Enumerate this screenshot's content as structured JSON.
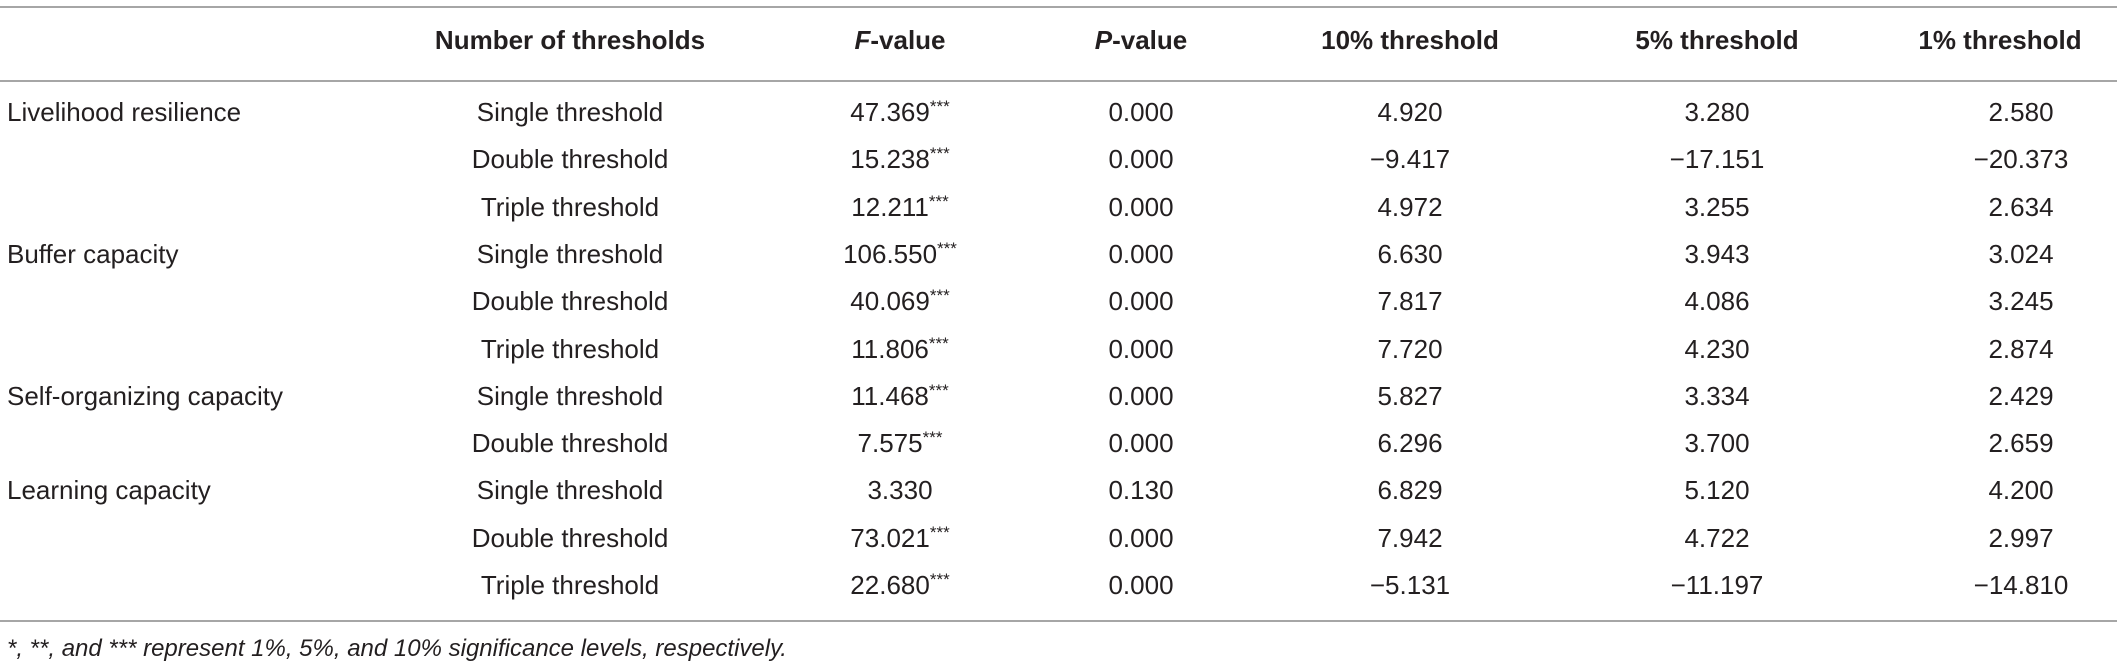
{
  "table": {
    "header": [
      {
        "text": "Number of thresholds"
      },
      {
        "italic": "F",
        "text": "-value"
      },
      {
        "italic": "P",
        "text": "-value"
      },
      {
        "text": "10% threshold"
      },
      {
        "text": "5% threshold"
      },
      {
        "text": "1% threshold"
      }
    ],
    "groups": [
      {
        "name": "Livelihood resilience",
        "rows": [
          [
            "Single threshold",
            "47.369***",
            "0.000",
            "4.920",
            "3.280",
            "2.580"
          ],
          [
            "Double threshold",
            "15.238***",
            "0.000",
            "−9.417",
            "−17.151",
            "−20.373"
          ],
          [
            "Triple threshold",
            "12.211***",
            "0.000",
            "4.972",
            "3.255",
            "2.634"
          ]
        ]
      },
      {
        "name": "Buffer capacity",
        "rows": [
          [
            "Single threshold",
            "106.550***",
            "0.000",
            "6.630",
            "3.943",
            "3.024"
          ],
          [
            "Double threshold",
            "40.069***",
            "0.000",
            "7.817",
            "4.086",
            "3.245"
          ],
          [
            "Triple threshold",
            "11.806***",
            "0.000",
            "7.720",
            "4.230",
            "2.874"
          ]
        ]
      },
      {
        "name": "Self-organizing capacity",
        "rows": [
          [
            "Single threshold",
            "11.468***",
            "0.000",
            "5.827",
            "3.334",
            "2.429"
          ],
          [
            "Double threshold",
            "7.575***",
            "0.000",
            "6.296",
            "3.700",
            "2.659"
          ]
        ]
      },
      {
        "name": "Learning capacity",
        "rows": [
          [
            "Single threshold",
            "3.330",
            "0.130",
            "6.829",
            "5.120",
            "4.200"
          ],
          [
            "Double threshold",
            "73.021***",
            "0.000",
            "7.942",
            "4.722",
            "2.997"
          ],
          [
            "Triple threshold",
            "22.680***",
            "0.000",
            "−5.131",
            "−11.197",
            "−14.810"
          ]
        ]
      }
    ],
    "footnote": "*, **, and *** represent 1%, 5%, and 10% significance levels, respectively."
  }
}
